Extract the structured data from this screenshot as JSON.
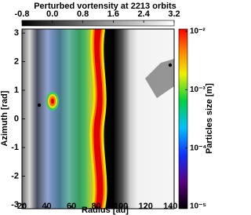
{
  "chart_data": {
    "type": "image",
    "title": "Perturbed vortensity at 2213 orbits",
    "x_label": "Radius [au]",
    "y_label": "Azimuth [rad]",
    "xlim": [
      20,
      143
    ],
    "xticks": [
      20,
      40,
      60,
      80,
      100,
      120,
      140
    ],
    "ylim": [
      -3.14,
      3.14
    ],
    "yticks": [
      -3,
      -2,
      -1,
      0,
      1,
      2,
      3
    ],
    "colorbar_top": {
      "lim": [
        -0.8,
        3.2
      ],
      "ticks": [
        -0.8,
        0.0,
        0.8,
        1.6,
        2.4,
        3.2
      ]
    },
    "colorbar_right": {
      "label": "Particles size [m]",
      "log": true,
      "lim": [
        1e-05,
        0.01
      ],
      "ticks": [
        {
          "value": 1e-05,
          "label": "10⁻⁵"
        },
        {
          "value": 0.0001,
          "label": "10⁻⁴"
        },
        {
          "value": 0.001,
          "label": "10⁻³"
        },
        {
          "value": 0.01,
          "label": "10⁻²"
        }
      ]
    }
  }
}
